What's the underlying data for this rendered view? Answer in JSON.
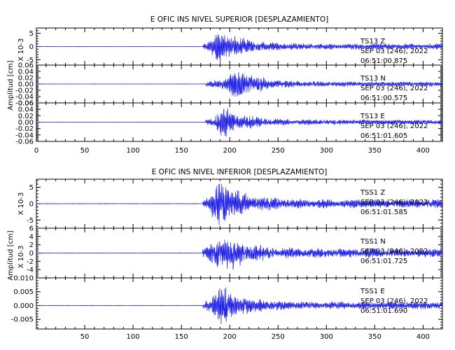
{
  "colors": {
    "trace": "#1f1fe6",
    "axes": "#000000",
    "background": "#ffffff"
  },
  "chart_data": [
    {
      "type": "line",
      "title": "E OFIC INS NIVEL SUPERIOR [DESPLAZAMIENTO]",
      "ylabel": "Amplitud [cm]",
      "xlim": [
        0,
        420
      ],
      "xticks": [
        "0",
        "50",
        "100",
        "150",
        "200",
        "250",
        "300",
        "350",
        "400"
      ],
      "panels": [
        {
          "name": "TS13 Z",
          "station": "TS13",
          "component": "Z",
          "date": "SEP 03 (246), 2022",
          "time": "06:51:00.875",
          "ylabel": "X 10-3",
          "ylim": [
            -7,
            7
          ],
          "yticks": [
            "5",
            "0",
            "-5"
          ],
          "signal": {
            "onset": 172,
            "peak_time": 191,
            "peak_amplitude": 6.5,
            "coda_amplitude": 1.0
          }
        },
        {
          "name": "TS13 N",
          "station": "TS13",
          "component": "N",
          "date": "SEP 03 (246), 2022",
          "time": "06:51:00.575",
          "ylabel": "",
          "ylim": [
            -0.06,
            0.06
          ],
          "yticks": [
            "0.06",
            "0.04",
            "0.02",
            "0.00",
            "-0.02",
            "-0.04",
            "-0.06"
          ],
          "signal": {
            "onset": 175,
            "peak_time": 210,
            "peak_amplitude": 0.045,
            "coda_amplitude": 0.007
          }
        },
        {
          "name": "TS13 E",
          "station": "TS13",
          "component": "E",
          "date": "SEP 03 (246), 2022",
          "time": "06:51:01.605",
          "ylabel": "",
          "ylim": [
            -0.06,
            0.06
          ],
          "yticks": [
            "0.06",
            "0.04",
            "0.02",
            "0.00",
            "-0.02",
            "-0.04",
            "-0.06"
          ],
          "signal": {
            "onset": 175,
            "peak_time": 193,
            "peak_amplitude": 0.045,
            "coda_amplitude": 0.007
          }
        }
      ]
    },
    {
      "type": "line",
      "title": "E OFIC INS NIVEL INFERIOR [DESPLAZAMIENTO]",
      "ylabel": "Amplitud [cm]",
      "xlim": [
        0,
        420
      ],
      "xticks": [
        "50",
        "100",
        "150",
        "200",
        "250",
        "300",
        "350",
        "400"
      ],
      "panels": [
        {
          "name": "TSS1 Z",
          "station": "TSS1",
          "component": "Z",
          "date": "SEP 03 (246), 2022",
          "time": "06:51:01.585",
          "ylabel": "X 10-3",
          "ylim": [
            -7.5,
            7.5
          ],
          "yticks": [
            "5",
            "0",
            "-5"
          ],
          "signal": {
            "onset": 172,
            "peak_time": 190,
            "peak_amplitude": 7.0,
            "coda_amplitude": 1.2
          }
        },
        {
          "name": "TSS1 N",
          "station": "TSS1",
          "component": "N",
          "date": "SEP 03 (246), 2022",
          "time": "06:51:01.725",
          "ylabel": "X 10-3",
          "ylim": [
            -6,
            6
          ],
          "yticks": [
            "6",
            "4",
            "2",
            "0",
            "-2",
            "-4"
          ],
          "signal": {
            "onset": 172,
            "peak_time": 192,
            "peak_amplitude": 5.0,
            "coda_amplitude": 1.0
          }
        },
        {
          "name": "TSS1 E",
          "station": "TSS1",
          "component": "E",
          "date": "SEP 03 (246), 2022",
          "time": "06:51:01.690",
          "ylabel": "",
          "ylim": [
            -0.0085,
            0.01
          ],
          "yticks": [
            "0.010",
            "0.005",
            "0.000",
            "-0.005"
          ],
          "signal": {
            "onset": 172,
            "peak_time": 190,
            "peak_amplitude": 0.0075,
            "coda_amplitude": 0.0012
          }
        }
      ]
    }
  ]
}
